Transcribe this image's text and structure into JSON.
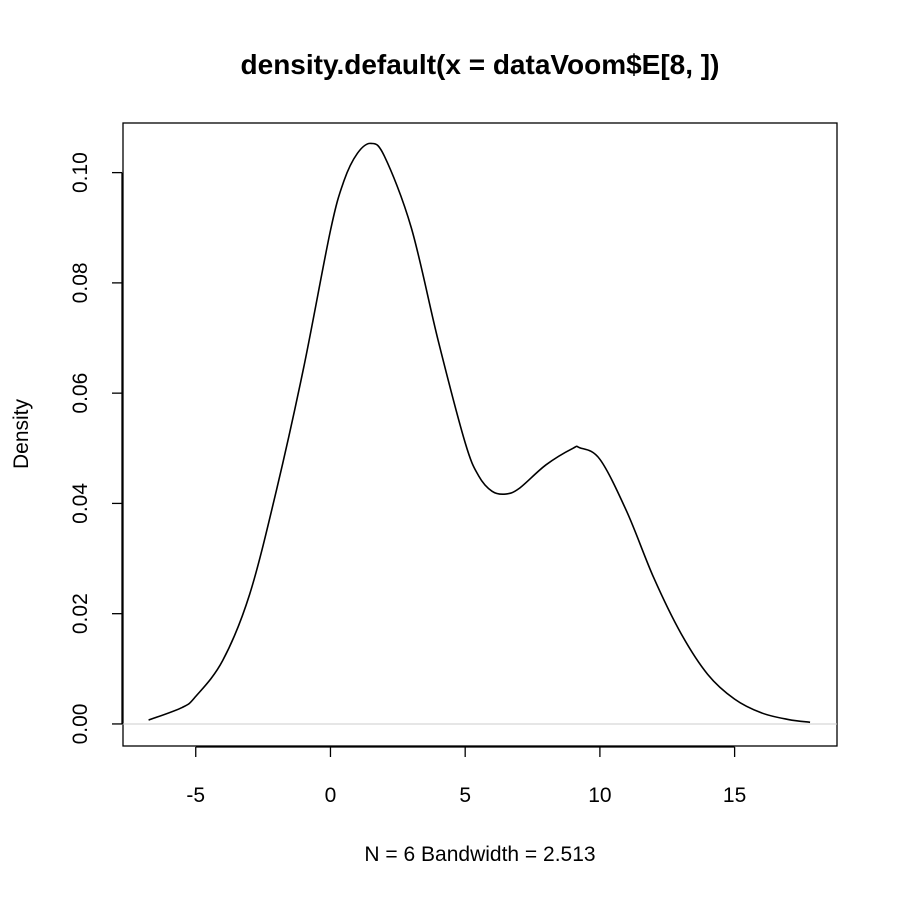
{
  "chart_data": {
    "type": "line",
    "title": "density.default(x = dataVoom$E[8, ])",
    "xlabel": "N = 6   Bandwidth = 2.513",
    "ylabel": "Density",
    "xlim": [
      -7.7,
      18.8
    ],
    "ylim": [
      -0.004,
      0.109
    ],
    "x_ticks": [
      -5,
      0,
      5,
      10,
      15
    ],
    "x_tick_labels": [
      "-5",
      "0",
      "5",
      "10",
      "15"
    ],
    "y_ticks": [
      0,
      0.02,
      0.04,
      0.06,
      0.08,
      0.1
    ],
    "y_tick_labels": [
      "0.00",
      "0.02",
      "0.04",
      "0.06",
      "0.08",
      "0.10"
    ],
    "grid": false,
    "zero_line": true,
    "series": [
      {
        "color": "#000000",
        "x": [
          -6.75,
          -5.5,
          -5,
          -4,
          -3,
          -2,
          -1,
          0,
          0.5,
          1,
          1.5,
          2,
          3,
          4,
          5,
          5.5,
          6,
          6.5,
          7,
          8,
          9,
          9.25,
          10,
          11,
          12,
          13,
          14,
          15,
          16,
          17,
          17.8
        ],
        "y": [
          0.0007,
          0.003,
          0.005,
          0.0115,
          0.0235,
          0.0425,
          0.0645,
          0.0895,
          0.0985,
          0.1035,
          0.1053,
          0.103,
          0.09,
          0.0695,
          0.051,
          0.045,
          0.0422,
          0.0417,
          0.0427,
          0.047,
          0.05,
          0.0501,
          0.048,
          0.0385,
          0.0265,
          0.0165,
          0.009,
          0.0045,
          0.002,
          0.0008,
          0.0003
        ]
      }
    ]
  }
}
